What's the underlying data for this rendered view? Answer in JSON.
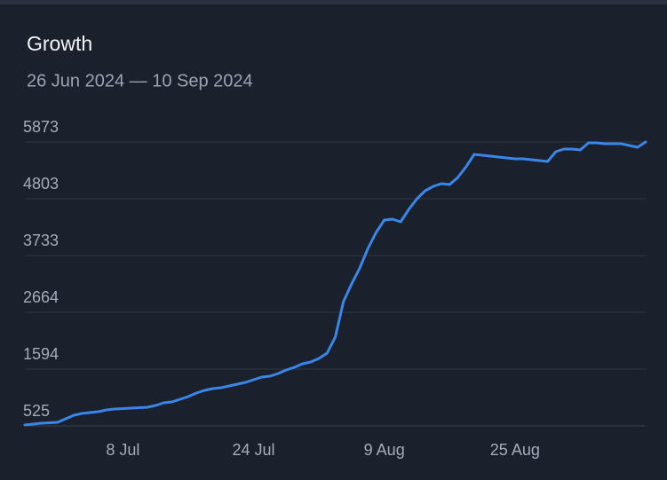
{
  "chart_data": {
    "type": "line",
    "title": "Growth",
    "subtitle": "26 Jun 2024 — 10 Sep 2024",
    "categories": [
      null,
      null,
      null,
      null,
      null,
      null,
      null,
      null,
      null,
      null,
      null,
      null,
      "8 Jul",
      null,
      null,
      null,
      null,
      null,
      null,
      null,
      null,
      null,
      null,
      null,
      null,
      null,
      null,
      null,
      "24 Jul",
      null,
      null,
      null,
      null,
      null,
      null,
      null,
      null,
      null,
      null,
      null,
      null,
      null,
      null,
      null,
      "9 Aug",
      null,
      null,
      null,
      null,
      null,
      null,
      null,
      null,
      null,
      null,
      null,
      null,
      null,
      null,
      null,
      "25 Aug",
      null,
      null,
      null,
      null,
      null,
      null,
      null,
      null,
      null,
      null,
      null,
      null,
      null,
      null,
      null,
      null
    ],
    "series": [
      {
        "name": "Growth",
        "color": "#3a86e8",
        "values": [
          542,
          558,
          575,
          583,
          592,
          659,
          726,
          759,
          776,
          792,
          826,
          843,
          851,
          859,
          868,
          876,
          909,
          960,
          976,
          1026,
          1077,
          1143,
          1194,
          1227,
          1244,
          1277,
          1310,
          1344,
          1394,
          1444,
          1461,
          1511,
          1578,
          1628,
          1695,
          1728,
          1795,
          1895,
          2196,
          2865,
          3199,
          3500,
          3868,
          4168,
          4402,
          4419,
          4369,
          4603,
          4803,
          4954,
          5037,
          5088,
          5071,
          5205,
          5405,
          5639,
          5622,
          5606,
          5589,
          5572,
          5555,
          5555,
          5539,
          5522,
          5505,
          5689,
          5739,
          5739,
          5723,
          5856,
          5856,
          5839,
          5839,
          5839,
          5806,
          5773,
          5873
        ]
      }
    ],
    "ylim": [
      525,
      5873
    ],
    "yticks": [
      525,
      1594,
      2664,
      3733,
      4803,
      5873
    ],
    "grid": true
  }
}
